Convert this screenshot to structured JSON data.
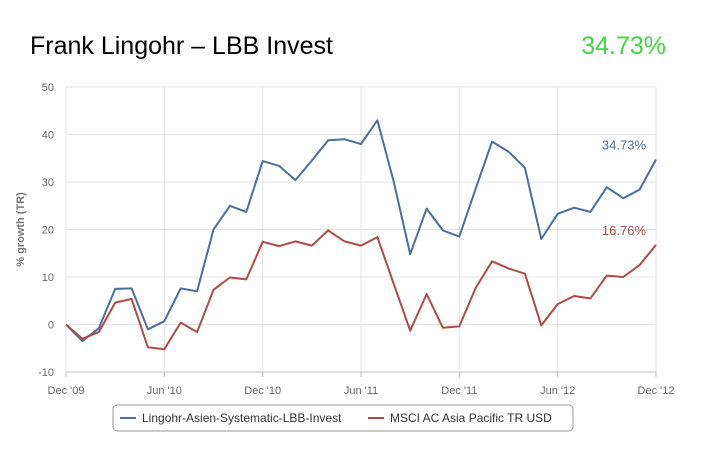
{
  "header": {
    "title": "Frank Lingohr – LBB Invest",
    "headline_value": "34.73%",
    "headline_color": "#3fd63f"
  },
  "chart_data": {
    "type": "line",
    "ylabel": "% growth (TR)",
    "ylim": [
      -10,
      50
    ],
    "yticks": [
      -10,
      0,
      10,
      20,
      30,
      40,
      50
    ],
    "xlim": [
      "2009-12",
      "2012-12"
    ],
    "xticks": [
      {
        "date": "2009-12",
        "label": "Dec '09"
      },
      {
        "date": "2010-06",
        "label": "Jun '10"
      },
      {
        "date": "2010-12",
        "label": "Dec '10"
      },
      {
        "date": "2011-06",
        "label": "Jun '11"
      },
      {
        "date": "2011-12",
        "label": "Dec '11"
      },
      {
        "date": "2012-06",
        "label": "Jun '12"
      },
      {
        "date": "2012-12",
        "label": "Dec '12"
      }
    ],
    "grid": true,
    "legend_position": "bottom",
    "x": [
      "2009-12",
      "2010-01",
      "2010-02",
      "2010-03",
      "2010-04",
      "2010-05",
      "2010-06",
      "2010-07",
      "2010-08",
      "2010-09",
      "2010-10",
      "2010-11",
      "2010-12",
      "2011-01",
      "2011-02",
      "2011-03",
      "2011-04",
      "2011-05",
      "2011-06",
      "2011-07",
      "2011-08",
      "2011-09",
      "2011-10",
      "2011-11",
      "2011-12",
      "2012-01",
      "2012-02",
      "2012-03",
      "2012-04",
      "2012-05",
      "2012-06",
      "2012-07",
      "2012-08",
      "2012-09",
      "2012-10",
      "2012-11",
      "2012-12"
    ],
    "series": [
      {
        "name": "Lingohr-Asien-Systematic-LBB-Invest",
        "color": "#4a6f9e",
        "end_label": "34.73%",
        "values": [
          0,
          -3.5,
          -0.8,
          7.5,
          7.6,
          -1,
          0.7,
          7.6,
          7,
          20,
          25,
          23.7,
          34.4,
          33.4,
          30.4,
          34.5,
          38.8,
          39,
          38,
          43,
          30,
          14.8,
          24.4,
          19.8,
          18.5,
          28.6,
          38.5,
          36.4,
          33,
          18,
          23.3,
          24.6,
          23.7,
          28.9,
          26.6,
          28.4,
          34.73
        ]
      },
      {
        "name": "MSCI AC Asia Pacific TR USD",
        "color": "#b04a45",
        "end_label": "16.76%",
        "values": [
          0,
          -3,
          -1.6,
          4.6,
          5.4,
          -4.8,
          -5.2,
          0.4,
          -1.6,
          7.3,
          9.9,
          9.5,
          17.4,
          16.5,
          17.5,
          16.6,
          19.8,
          17.5,
          16.6,
          18.4,
          8.5,
          -1.3,
          6.4,
          -0.7,
          -0.4,
          7.7,
          13.3,
          11.8,
          10.7,
          -0.2,
          4.3,
          6,
          5.5,
          10.3,
          10,
          12.5,
          16.76
        ]
      }
    ]
  }
}
